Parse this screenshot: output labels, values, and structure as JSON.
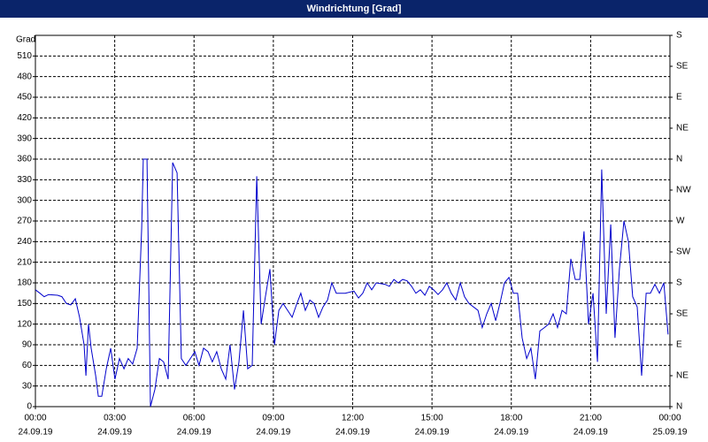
{
  "chart_data": {
    "type": "line",
    "title": "Windrichtung [Grad]",
    "y_label": "Grad",
    "color": "#0000cc",
    "grid": true,
    "xlim": [
      0,
      24
    ],
    "xticks": [
      {
        "value": 0,
        "label": [
          "00:00",
          "24.09.19"
        ]
      },
      {
        "value": 3,
        "label": [
          "03:00",
          "24.09.19"
        ]
      },
      {
        "value": 6,
        "label": [
          "06:00",
          "24.09.19"
        ]
      },
      {
        "value": 9,
        "label": [
          "09:00",
          "24.09.19"
        ]
      },
      {
        "value": 12,
        "label": [
          "12:00",
          "24.09.19"
        ]
      },
      {
        "value": 15,
        "label": [
          "15:00",
          "24.09.19"
        ]
      },
      {
        "value": 18,
        "label": [
          "18:00",
          "24.09.19"
        ]
      },
      {
        "value": 21,
        "label": [
          "21:00",
          "24.09.19"
        ]
      },
      {
        "value": 24,
        "label": [
          "00:00",
          "25.09.19"
        ]
      }
    ],
    "ylim": [
      0,
      540
    ],
    "yticks": [
      0,
      30,
      60,
      90,
      120,
      150,
      180,
      210,
      240,
      270,
      300,
      330,
      360,
      390,
      420,
      450,
      480,
      510
    ],
    "y2lim": [
      0,
      540
    ],
    "y2ticks": [
      {
        "value": 0,
        "label": "N"
      },
      {
        "value": 45,
        "label": "NE"
      },
      {
        "value": 90,
        "label": "E"
      },
      {
        "value": 135,
        "label": "SE"
      },
      {
        "value": 180,
        "label": "S"
      },
      {
        "value": 225,
        "label": "SW"
      },
      {
        "value": 270,
        "label": "W"
      },
      {
        "value": 315,
        "label": "NW"
      },
      {
        "value": 360,
        "label": "N"
      },
      {
        "value": 405,
        "label": "NE"
      },
      {
        "value": 450,
        "label": "E"
      },
      {
        "value": 495,
        "label": "SE"
      },
      {
        "value": 540,
        "label": "S"
      }
    ],
    "x": [
      0,
      0.17,
      0.33,
      0.5,
      0.84,
      1.0,
      1.17,
      1.34,
      1.51,
      1.67,
      1.84,
      1.91,
      2.01,
      2.11,
      2.28,
      2.38,
      2.51,
      2.68,
      2.85,
      3.01,
      3.18,
      3.35,
      3.51,
      3.68,
      3.85,
      4.02,
      4.08,
      4.22,
      4.35,
      4.52,
      4.69,
      4.85,
      5.02,
      5.19,
      5.36,
      5.52,
      5.69,
      5.86,
      6.03,
      6.19,
      6.36,
      6.53,
      6.69,
      6.86,
      7.03,
      7.2,
      7.36,
      7.53,
      7.7,
      7.87,
      8.03,
      8.2,
      8.37,
      8.54,
      8.7,
      8.87,
      9.04,
      9.21,
      9.37,
      9.54,
      9.71,
      9.87,
      10.04,
      10.21,
      10.38,
      10.54,
      10.71,
      10.88,
      11.05,
      11.21,
      11.38,
      11.72,
      12.05,
      12.22,
      12.38,
      12.55,
      12.72,
      12.89,
      13.22,
      13.39,
      13.56,
      13.72,
      13.89,
      14.06,
      14.23,
      14.39,
      14.56,
      14.73,
      14.9,
      15.06,
      15.23,
      15.4,
      15.56,
      15.73,
      15.9,
      16.07,
      16.23,
      16.4,
      16.57,
      16.74,
      16.9,
      17.07,
      17.24,
      17.41,
      17.57,
      17.74,
      17.91,
      18.08,
      18.24,
      18.41,
      18.58,
      18.74,
      18.91,
      19.08,
      19.25,
      19.41,
      19.58,
      19.75,
      19.92,
      20.08,
      20.25,
      20.42,
      20.59,
      20.75,
      20.92,
      21.09,
      21.26,
      21.42,
      21.59,
      21.76,
      21.92,
      22.09,
      22.26,
      22.43,
      22.59,
      22.76,
      22.93,
      23.1,
      23.26,
      23.43,
      23.6,
      23.77,
      23.93
    ],
    "values": [
      170,
      165,
      160,
      163,
      162,
      160,
      150,
      148,
      157,
      130,
      90,
      45,
      120,
      85,
      45,
      15,
      15,
      55,
      85,
      40,
      70,
      55,
      70,
      62,
      85,
      260,
      360,
      360,
      0,
      25,
      70,
      65,
      40,
      355,
      340,
      70,
      60,
      70,
      80,
      60,
      85,
      80,
      65,
      80,
      55,
      40,
      90,
      25,
      65,
      140,
      55,
      60,
      335,
      120,
      160,
      200,
      90,
      140,
      150,
      140,
      130,
      148,
      165,
      140,
      155,
      150,
      130,
      145,
      155,
      180,
      165,
      165,
      168,
      158,
      165,
      180,
      170,
      180,
      178,
      175,
      185,
      180,
      185,
      183,
      175,
      165,
      170,
      162,
      175,
      170,
      163,
      170,
      180,
      165,
      155,
      180,
      160,
      150,
      145,
      140,
      115,
      135,
      150,
      125,
      150,
      180,
      188,
      165,
      165,
      100,
      70,
      85,
      40,
      110,
      115,
      120,
      135,
      115,
      140,
      135,
      215,
      185,
      185,
      255,
      120,
      165,
      65,
      345,
      135,
      265,
      100,
      200,
      270,
      240,
      160,
      145,
      45,
      165,
      165,
      178,
      165,
      180,
      105
    ]
  }
}
